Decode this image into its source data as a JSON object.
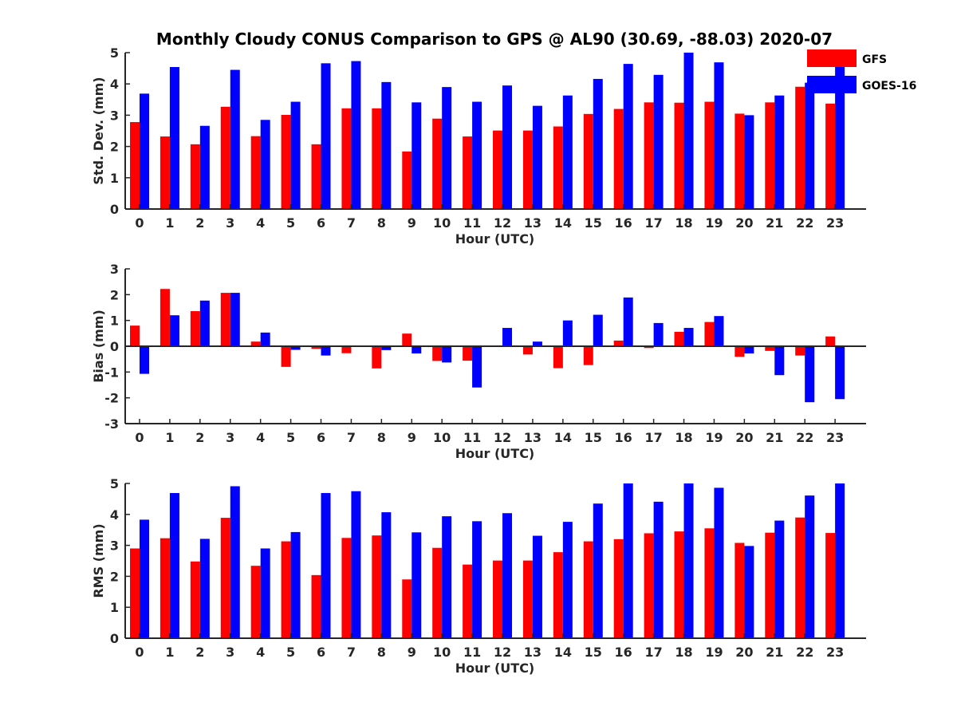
{
  "title": "Monthly Cloudy CONUS Comparison to GPS @ AL90 (30.69, -88.03) 2020-07",
  "legend": [
    {
      "label": "GFS",
      "color": "#ff0000"
    },
    {
      "label": "GOES-16",
      "color": "#0000ff"
    }
  ],
  "chart_data": [
    {
      "type": "bar",
      "xlabel": "Hour (UTC)",
      "ylabel": "Std. Dev. (mm)",
      "ylim": [
        0,
        5
      ],
      "yticks": [
        0,
        1,
        2,
        3,
        4,
        5
      ],
      "categories": [
        "0",
        "1",
        "2",
        "3",
        "4",
        "5",
        "6",
        "7",
        "8",
        "9",
        "10",
        "11",
        "12",
        "13",
        "14",
        "15",
        "16",
        "17",
        "18",
        "19",
        "20",
        "21",
        "22",
        "23"
      ],
      "series": [
        {
          "name": "GFS",
          "color": "#ff0000",
          "values": [
            2.78,
            2.32,
            2.07,
            3.27,
            2.33,
            3.01,
            2.07,
            3.22,
            3.22,
            1.84,
            2.89,
            2.32,
            2.51,
            2.51,
            2.64,
            3.04,
            3.2,
            3.41,
            3.4,
            3.43,
            3.05,
            3.41,
            3.91,
            3.37
          ]
        },
        {
          "name": "GOES-16",
          "color": "#0000ff",
          "values": [
            3.69,
            4.54,
            2.66,
            4.45,
            2.85,
            3.43,
            4.66,
            4.73,
            4.06,
            3.41,
            3.9,
            3.43,
            3.95,
            3.3,
            3.63,
            4.16,
            4.64,
            4.29,
            5.0,
            4.69,
            3.0,
            3.63,
            4.04,
            4.78
          ]
        }
      ]
    },
    {
      "type": "bar",
      "xlabel": "Hour (UTC)",
      "ylabel": "Bias (mm)",
      "ylim": [
        -3,
        3
      ],
      "yticks": [
        -3,
        -2,
        -1,
        0,
        1,
        2,
        3
      ],
      "categories": [
        "0",
        "1",
        "2",
        "3",
        "4",
        "5",
        "6",
        "7",
        "8",
        "9",
        "10",
        "11",
        "12",
        "13",
        "14",
        "15",
        "16",
        "17",
        "18",
        "19",
        "20",
        "21",
        "22",
        "23"
      ],
      "series": [
        {
          "name": "GFS",
          "color": "#ff0000",
          "values": [
            0.8,
            2.22,
            1.36,
            2.07,
            0.18,
            -0.8,
            -0.1,
            -0.27,
            -0.86,
            0.49,
            -0.57,
            -0.56,
            0.02,
            -0.32,
            -0.85,
            -0.73,
            0.22,
            -0.07,
            0.56,
            0.94,
            -0.41,
            -0.18,
            -0.36,
            0.38
          ]
        },
        {
          "name": "GOES-16",
          "color": "#0000ff",
          "values": [
            -1.07,
            1.2,
            1.77,
            2.07,
            0.53,
            -0.14,
            -0.36,
            0.0,
            -0.15,
            -0.28,
            -0.63,
            -1.6,
            0.71,
            0.18,
            1.0,
            1.22,
            1.89,
            0.9,
            0.71,
            1.17,
            -0.28,
            -1.12,
            -2.17,
            -2.05
          ]
        }
      ]
    },
    {
      "type": "bar",
      "xlabel": "Hour (UTC)",
      "ylabel": "RMS (mm)",
      "ylim": [
        0,
        5
      ],
      "yticks": [
        0,
        1,
        2,
        3,
        4,
        5
      ],
      "categories": [
        "0",
        "1",
        "2",
        "3",
        "4",
        "5",
        "6",
        "7",
        "8",
        "9",
        "10",
        "11",
        "12",
        "13",
        "14",
        "15",
        "16",
        "17",
        "18",
        "19",
        "20",
        "21",
        "22",
        "23"
      ],
      "series": [
        {
          "name": "GFS",
          "color": "#ff0000",
          "values": [
            2.9,
            3.23,
            2.48,
            3.89,
            2.34,
            3.13,
            2.04,
            3.24,
            3.32,
            1.9,
            2.92,
            2.38,
            2.51,
            2.51,
            2.78,
            3.13,
            3.2,
            3.39,
            3.45,
            3.55,
            3.08,
            3.41,
            3.9,
            3.4
          ]
        },
        {
          "name": "GOES-16",
          "color": "#0000ff",
          "values": [
            3.83,
            4.69,
            3.21,
            4.91,
            2.9,
            3.43,
            4.69,
            4.75,
            4.07,
            3.42,
            3.94,
            3.78,
            4.04,
            3.31,
            3.76,
            4.35,
            5.0,
            4.41,
            5.0,
            4.86,
            2.98,
            3.8,
            4.61,
            5.0
          ]
        }
      ]
    }
  ]
}
